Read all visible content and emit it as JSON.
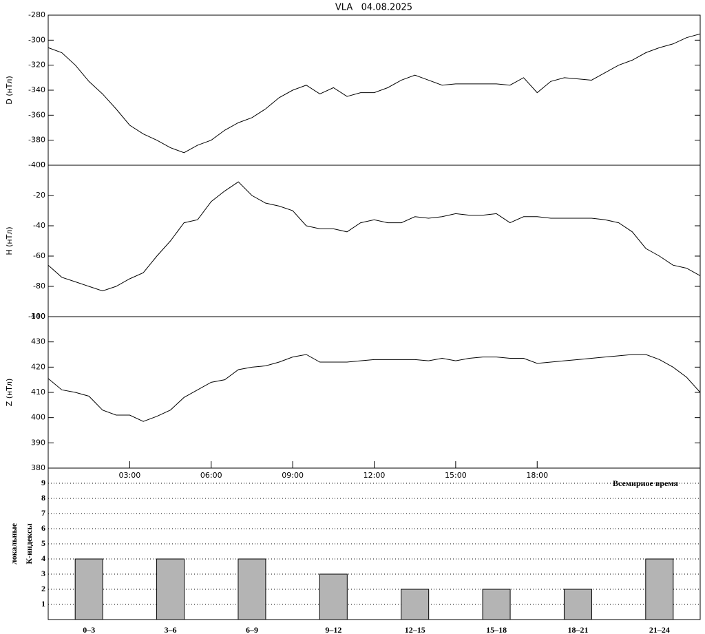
{
  "chart_data": [
    {
      "type": "line",
      "title": "VLA   04.08.2025",
      "y_label": "D (нТл)",
      "color": "#000000",
      "x": [
        0,
        0.5,
        1,
        1.5,
        2,
        2.5,
        3,
        3.5,
        4,
        4.5,
        5,
        5.5,
        6,
        6.5,
        7,
        7.5,
        8,
        8.5,
        9,
        9.5,
        10,
        10.5,
        11,
        11.5,
        12,
        12.5,
        13,
        13.5,
        14,
        14.5,
        15,
        15.5,
        16,
        16.5,
        17,
        17.5,
        18,
        18.5,
        19,
        19.5,
        20,
        20.5,
        21,
        21.5,
        22,
        22.5,
        23,
        23.5,
        24
      ],
      "values": [
        -306,
        -310,
        -320,
        -333,
        -343,
        -355,
        -368,
        -375,
        -380,
        -386,
        -390,
        -384,
        -380,
        -372,
        -366,
        -362,
        -355,
        -346,
        -340,
        -336,
        -343,
        -338,
        -345,
        -342,
        -342,
        -338,
        -332,
        -328,
        -332,
        -336,
        -335,
        -335,
        -335,
        -335,
        -336,
        -330,
        -342,
        -333,
        -330,
        -331,
        -332,
        -326,
        -320,
        -316,
        -310,
        -306,
        -303,
        -298,
        -295
      ],
      "xlim": [
        0,
        24
      ],
      "ylim": [
        -400,
        -280
      ],
      "yticks": [
        -400,
        -380,
        -360,
        -340,
        -320,
        -300,
        -280
      ]
    },
    {
      "type": "line",
      "y_label": "H (нТл)",
      "color": "#000000",
      "x": [
        0,
        0.5,
        1,
        1.5,
        2,
        2.5,
        3,
        3.5,
        4,
        4.5,
        5,
        5.5,
        6,
        6.5,
        7,
        7.5,
        8,
        8.5,
        9,
        9.5,
        10,
        10.5,
        11,
        11.5,
        12,
        12.5,
        13,
        13.5,
        14,
        14.5,
        15,
        15.5,
        16,
        16.5,
        17,
        17.5,
        18,
        18.5,
        19,
        19.5,
        20,
        20.5,
        21,
        21.5,
        22,
        22.5,
        23,
        23.5,
        24
      ],
      "values": [
        -66,
        -74,
        -77,
        -80,
        -83,
        -80,
        -75,
        -71,
        -60,
        -50,
        -38,
        -36,
        -24,
        -17,
        -11,
        -20,
        -25,
        -27,
        -30,
        -40,
        -42,
        -42,
        -44,
        -38,
        -36,
        -38,
        -38,
        -34,
        -35,
        -34,
        -32,
        -33,
        -33,
        -32,
        -38,
        -34,
        -34,
        -35,
        -35,
        -35,
        -35,
        -36,
        -38,
        -44,
        -55,
        -60,
        -66,
        -68,
        -73
      ],
      "xlim": [
        0,
        24
      ],
      "ylim": [
        -100,
        0
      ],
      "yticks": [
        -100,
        -80,
        -60,
        -40,
        -20,
        0
      ]
    },
    {
      "type": "line",
      "y_label": "Z (нТл)",
      "x_label": "Всемирное время",
      "color": "#000000",
      "x": [
        0,
        0.5,
        1,
        1.5,
        2,
        2.5,
        3,
        3.5,
        4,
        4.5,
        5,
        5.5,
        6,
        6.5,
        7,
        7.5,
        8,
        8.5,
        9,
        9.5,
        10,
        10.5,
        11,
        11.5,
        12,
        12.5,
        13,
        13.5,
        14,
        14.5,
        15,
        15.5,
        16,
        16.5,
        17,
        17.5,
        18,
        18.5,
        19,
        19.5,
        20,
        20.5,
        21,
        21.5,
        22,
        22.5,
        23,
        23.5,
        24
      ],
      "values": [
        415.5,
        411,
        410,
        408.5,
        403,
        401,
        401,
        398.5,
        400.5,
        403,
        408,
        411,
        414,
        415,
        419,
        420,
        420.5,
        422,
        424,
        425,
        422,
        422,
        422,
        422.5,
        423,
        423,
        423,
        423,
        422.5,
        423.5,
        422.5,
        423.5,
        424,
        424,
        423.5,
        423.5,
        421.5,
        422,
        422.5,
        423,
        423.5,
        424,
        424.5,
        425,
        425,
        423,
        420,
        416,
        410
      ],
      "xlim": [
        0,
        24
      ],
      "ylim": [
        380,
        440
      ],
      "yticks": [
        380,
        390,
        400,
        410,
        420,
        430,
        440
      ],
      "xticks": [
        {
          "value": 3,
          "label": "03:00"
        },
        {
          "value": 6,
          "label": "06:00"
        },
        {
          "value": 9,
          "label": "09:00"
        },
        {
          "value": 12,
          "label": "12:00"
        },
        {
          "value": 15,
          "label": "15:00"
        },
        {
          "value": 18,
          "label": "18:00"
        }
      ]
    },
    {
      "type": "bar",
      "y_label": [
        "локальные",
        "К-индексы"
      ],
      "color": "#b4b4b4",
      "grid": true,
      "categories": [
        "0–3",
        "3–6",
        "6–9",
        "9–12",
        "12–15",
        "15–18",
        "18–21",
        "21–24"
      ],
      "values": [
        4,
        4,
        4,
        3,
        2,
        2,
        2,
        4
      ],
      "ylim": [
        0,
        10
      ],
      "yticks": [
        1,
        2,
        3,
        4,
        5,
        6,
        7,
        8,
        9
      ]
    }
  ]
}
